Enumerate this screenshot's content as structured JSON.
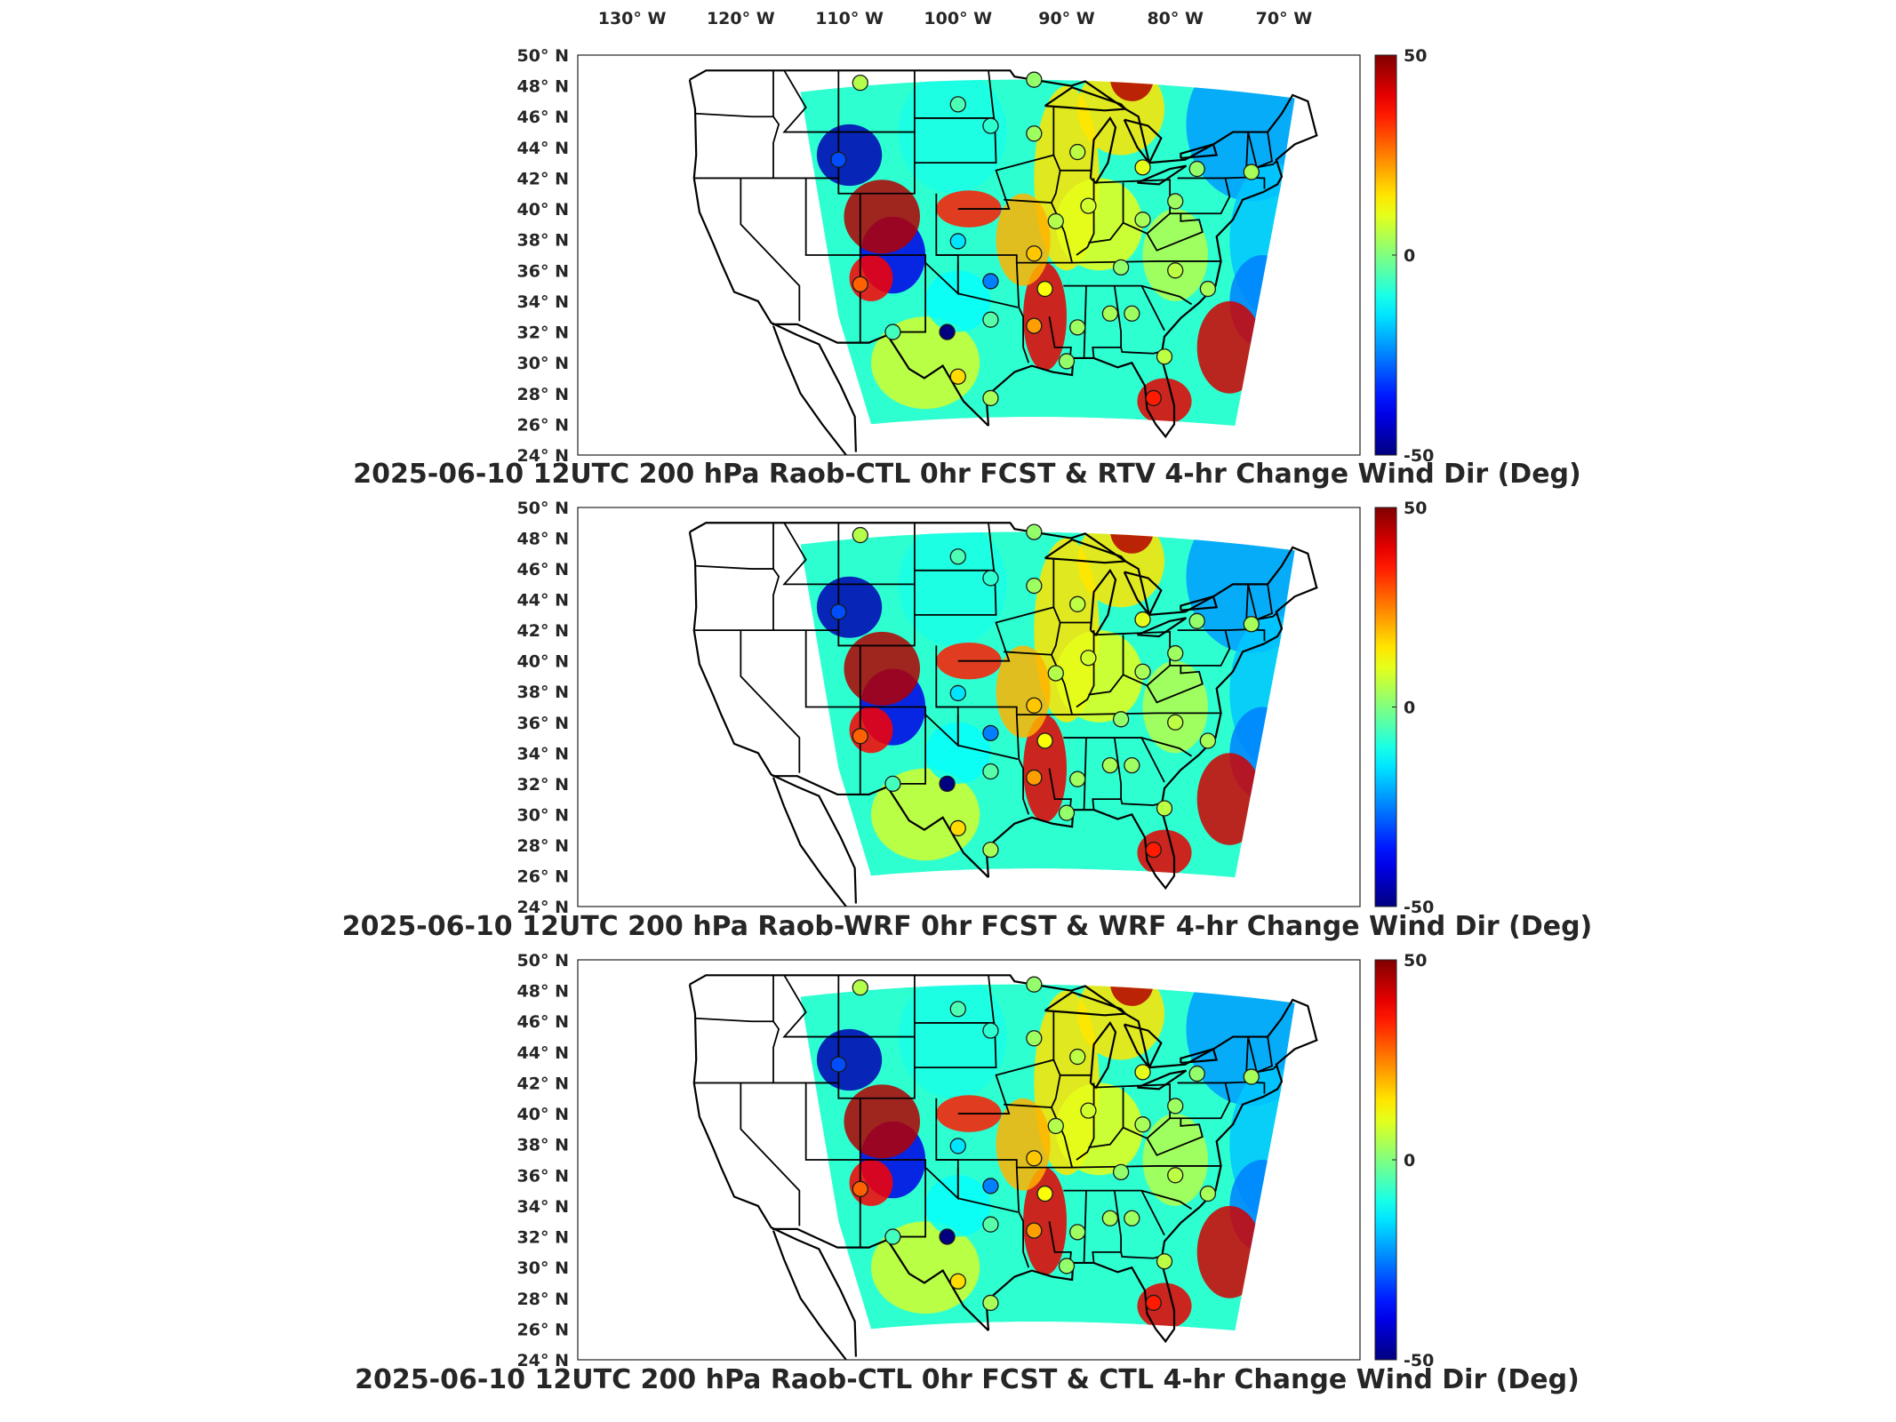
{
  "figure": {
    "top_lon_ticks": [
      "130",
      "120",
      "110",
      "100",
      "90",
      "80",
      "70"
    ],
    "lon_suffix": "W",
    "lat_suffix": "N",
    "degree_symbol": "°"
  },
  "chart_data": [
    {
      "type": "heatmap",
      "title": "2025-06-10 12UTC 200 hPa Raob-CTL 0hr FCST & RTV 4-hr Change Wind Dir (Deg)",
      "xlabel": "",
      "ylabel": "",
      "xlim": [
        -135,
        -63
      ],
      "ylim": [
        24,
        50
      ],
      "lat_ticks": [
        "50",
        "48",
        "46",
        "44",
        "42",
        "40",
        "38",
        "36",
        "34",
        "32",
        "30",
        "28",
        "26",
        "24"
      ],
      "colorbar": {
        "min": -50,
        "max": 50,
        "ticks": [
          "50",
          "0",
          "-50"
        ],
        "colormap": "jet"
      },
      "grid": false,
      "stations": [
        {
          "lon": -109,
          "lat": 48.2,
          "value": 5
        },
        {
          "lon": -100,
          "lat": 46.8,
          "value": -5
        },
        {
          "lon": -97,
          "lat": 45.4,
          "value": -8
        },
        {
          "lon": -93,
          "lat": 48.4,
          "value": 2
        },
        {
          "lon": -93,
          "lat": 44.9,
          "value": 3
        },
        {
          "lon": -89,
          "lat": 43.7,
          "value": 6
        },
        {
          "lon": -83,
          "lat": 42.7,
          "value": 10
        },
        {
          "lon": -78,
          "lat": 42.6,
          "value": 2
        },
        {
          "lon": -73,
          "lat": 42.4,
          "value": 4
        },
        {
          "lon": -111,
          "lat": 43.2,
          "value": -30
        },
        {
          "lon": -100,
          "lat": 37.9,
          "value": -15
        },
        {
          "lon": -97,
          "lat": 35.3,
          "value": -25
        },
        {
          "lon": -93,
          "lat": 37.1,
          "value": 18
        },
        {
          "lon": -92,
          "lat": 34.8,
          "value": 12
        },
        {
          "lon": -91,
          "lat": 39.2,
          "value": 5
        },
        {
          "lon": -88,
          "lat": 40.2,
          "value": 8
        },
        {
          "lon": -83,
          "lat": 39.3,
          "value": 4
        },
        {
          "lon": -80,
          "lat": 40.5,
          "value": 3
        },
        {
          "lon": -85,
          "lat": 36.2,
          "value": 2
        },
        {
          "lon": -80,
          "lat": 36.0,
          "value": 6
        },
        {
          "lon": -77,
          "lat": 34.8,
          "value": 4
        },
        {
          "lon": -109,
          "lat": 35.1,
          "value": 28
        },
        {
          "lon": -106,
          "lat": 32.0,
          "value": -6
        },
        {
          "lon": -101,
          "lat": 32.0,
          "value": -50
        },
        {
          "lon": -97,
          "lat": 32.8,
          "value": -4
        },
        {
          "lon": -93,
          "lat": 32.4,
          "value": 22
        },
        {
          "lon": -89,
          "lat": 32.3,
          "value": 3
        },
        {
          "lon": -86,
          "lat": 33.2,
          "value": 4
        },
        {
          "lon": -84,
          "lat": 33.2,
          "value": 3
        },
        {
          "lon": -81,
          "lat": 30.4,
          "value": 6
        },
        {
          "lon": -100,
          "lat": 29.1,
          "value": 16
        },
        {
          "lon": -97,
          "lat": 27.7,
          "value": 4
        },
        {
          "lon": -90,
          "lat": 30.1,
          "value": 2
        },
        {
          "lon": -82,
          "lat": 27.7,
          "value": 35
        }
      ]
    },
    {
      "type": "heatmap",
      "title": "2025-06-10 12UTC 200 hPa Raob-WRF 0hr FCST & WRF 4-hr Change Wind Dir (Deg)",
      "xlabel": "",
      "ylabel": "",
      "xlim": [
        -135,
        -63
      ],
      "ylim": [
        24,
        50
      ],
      "lat_ticks": [
        "50",
        "48",
        "46",
        "44",
        "42",
        "40",
        "38",
        "36",
        "34",
        "32",
        "30",
        "28",
        "26",
        "24"
      ],
      "colorbar": {
        "min": -50,
        "max": 50,
        "ticks": [
          "50",
          "0",
          "-50"
        ],
        "colormap": "jet"
      },
      "grid": false,
      "stations": [
        {
          "lon": -109,
          "lat": 48.2,
          "value": 5
        },
        {
          "lon": -100,
          "lat": 46.8,
          "value": -5
        },
        {
          "lon": -97,
          "lat": 45.4,
          "value": -8
        },
        {
          "lon": -93,
          "lat": 48.4,
          "value": 2
        },
        {
          "lon": -93,
          "lat": 44.9,
          "value": 3
        },
        {
          "lon": -89,
          "lat": 43.7,
          "value": 6
        },
        {
          "lon": -83,
          "lat": 42.7,
          "value": 10
        },
        {
          "lon": -78,
          "lat": 42.6,
          "value": 2
        },
        {
          "lon": -73,
          "lat": 42.4,
          "value": 4
        },
        {
          "lon": -111,
          "lat": 43.2,
          "value": -30
        },
        {
          "lon": -100,
          "lat": 37.9,
          "value": -15
        },
        {
          "lon": -97,
          "lat": 35.3,
          "value": -25
        },
        {
          "lon": -93,
          "lat": 37.1,
          "value": 18
        },
        {
          "lon": -92,
          "lat": 34.8,
          "value": 12
        },
        {
          "lon": -91,
          "lat": 39.2,
          "value": 5
        },
        {
          "lon": -88,
          "lat": 40.2,
          "value": 8
        },
        {
          "lon": -83,
          "lat": 39.3,
          "value": 4
        },
        {
          "lon": -80,
          "lat": 40.5,
          "value": 3
        },
        {
          "lon": -85,
          "lat": 36.2,
          "value": 2
        },
        {
          "lon": -80,
          "lat": 36.0,
          "value": 6
        },
        {
          "lon": -77,
          "lat": 34.8,
          "value": 4
        },
        {
          "lon": -109,
          "lat": 35.1,
          "value": 28
        },
        {
          "lon": -106,
          "lat": 32.0,
          "value": -6
        },
        {
          "lon": -101,
          "lat": 32.0,
          "value": -50
        },
        {
          "lon": -97,
          "lat": 32.8,
          "value": -4
        },
        {
          "lon": -93,
          "lat": 32.4,
          "value": 22
        },
        {
          "lon": -89,
          "lat": 32.3,
          "value": 3
        },
        {
          "lon": -86,
          "lat": 33.2,
          "value": 4
        },
        {
          "lon": -84,
          "lat": 33.2,
          "value": 3
        },
        {
          "lon": -81,
          "lat": 30.4,
          "value": 6
        },
        {
          "lon": -100,
          "lat": 29.1,
          "value": 16
        },
        {
          "lon": -97,
          "lat": 27.7,
          "value": 4
        },
        {
          "lon": -90,
          "lat": 30.1,
          "value": 2
        },
        {
          "lon": -82,
          "lat": 27.7,
          "value": 35
        }
      ]
    },
    {
      "type": "heatmap",
      "title": "2025-06-10 12UTC 200 hPa Raob-CTL 0hr FCST & CTL 4-hr Change Wind Dir (Deg)",
      "xlabel": "",
      "ylabel": "",
      "xlim": [
        -135,
        -63
      ],
      "ylim": [
        24,
        50
      ],
      "lat_ticks": [
        "50",
        "48",
        "46",
        "44",
        "42",
        "40",
        "38",
        "36",
        "34",
        "32",
        "30",
        "28",
        "26",
        "24"
      ],
      "colorbar": {
        "min": -50,
        "max": 50,
        "ticks": [
          "50",
          "0",
          "-50"
        ],
        "colormap": "jet"
      },
      "grid": false,
      "stations": [
        {
          "lon": -109,
          "lat": 48.2,
          "value": 5
        },
        {
          "lon": -100,
          "lat": 46.8,
          "value": -5
        },
        {
          "lon": -97,
          "lat": 45.4,
          "value": -8
        },
        {
          "lon": -93,
          "lat": 48.4,
          "value": 2
        },
        {
          "lon": -93,
          "lat": 44.9,
          "value": 3
        },
        {
          "lon": -89,
          "lat": 43.7,
          "value": 6
        },
        {
          "lon": -83,
          "lat": 42.7,
          "value": 10
        },
        {
          "lon": -78,
          "lat": 42.6,
          "value": 2
        },
        {
          "lon": -73,
          "lat": 42.4,
          "value": 4
        },
        {
          "lon": -111,
          "lat": 43.2,
          "value": -30
        },
        {
          "lon": -100,
          "lat": 37.9,
          "value": -15
        },
        {
          "lon": -97,
          "lat": 35.3,
          "value": -25
        },
        {
          "lon": -93,
          "lat": 37.1,
          "value": 18
        },
        {
          "lon": -92,
          "lat": 34.8,
          "value": 12
        },
        {
          "lon": -91,
          "lat": 39.2,
          "value": 5
        },
        {
          "lon": -88,
          "lat": 40.2,
          "value": 8
        },
        {
          "lon": -83,
          "lat": 39.3,
          "value": 4
        },
        {
          "lon": -80,
          "lat": 40.5,
          "value": 3
        },
        {
          "lon": -85,
          "lat": 36.2,
          "value": 2
        },
        {
          "lon": -80,
          "lat": 36.0,
          "value": 6
        },
        {
          "lon": -77,
          "lat": 34.8,
          "value": 4
        },
        {
          "lon": -109,
          "lat": 35.1,
          "value": 28
        },
        {
          "lon": -106,
          "lat": 32.0,
          "value": -6
        },
        {
          "lon": -101,
          "lat": 32.0,
          "value": -50
        },
        {
          "lon": -97,
          "lat": 32.8,
          "value": -4
        },
        {
          "lon": -93,
          "lat": 32.4,
          "value": 22
        },
        {
          "lon": -89,
          "lat": 32.3,
          "value": 3
        },
        {
          "lon": -86,
          "lat": 33.2,
          "value": 4
        },
        {
          "lon": -84,
          "lat": 33.2,
          "value": 3
        },
        {
          "lon": -81,
          "lat": 30.4,
          "value": 6
        },
        {
          "lon": -100,
          "lat": 29.1,
          "value": 16
        },
        {
          "lon": -97,
          "lat": 27.7,
          "value": 4
        },
        {
          "lon": -90,
          "lat": 30.1,
          "value": 2
        },
        {
          "lon": -82,
          "lat": 27.7,
          "value": 35
        }
      ]
    }
  ]
}
